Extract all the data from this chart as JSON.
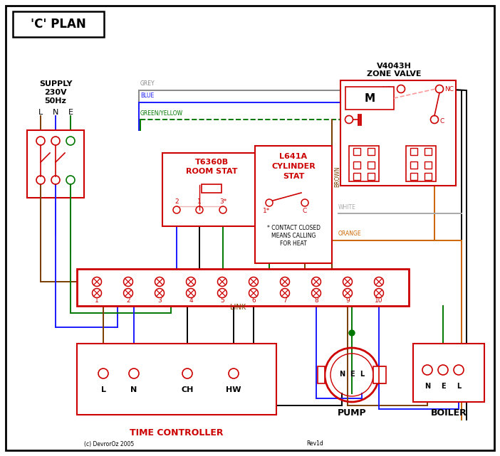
{
  "bg": "#ffffff",
  "black": "#000000",
  "red": "#cc0000",
  "blue": "#1a1aff",
  "green": "#007700",
  "brown": "#7a3d00",
  "grey": "#888888",
  "orange": "#cc6600",
  "white_w": "#aaaaaa",
  "pink": "#ff9999",
  "dark_brown": "#5a2d00",
  "supply_text": [
    "SUPPLY",
    "230V",
    "50Hz"
  ],
  "lne": [
    "L",
    "N",
    "E"
  ],
  "tc_labels": [
    "L",
    "N",
    "CH",
    "HW"
  ],
  "pump_labels": [
    "N",
    "E",
    "L"
  ],
  "boiler_labels": [
    "N",
    "E",
    "L"
  ],
  "term_count": 10,
  "title": "'C' PLAN",
  "zv_title1": "V4043H",
  "zv_title2": "ZONE VALVE",
  "rs_title1": "T6360B",
  "rs_title2": "ROOM STAT",
  "cs_title1": "L641A",
  "cs_title2": "CYLINDER",
  "cs_title3": "STAT",
  "tc_title": "TIME CONTROLLER",
  "pump_title": "PUMP",
  "boiler_title": "BOILER",
  "link_label": "LINK",
  "contact_note": [
    "* CONTACT CLOSED",
    "MEANS CALLING",
    "FOR HEAT"
  ],
  "copyright": "(c) DevrorOz 2005",
  "revision": "Rev1d",
  "wire_label_grey": "GREY",
  "wire_label_blue": "BLUE",
  "wire_label_gy": "GREEN/YELLOW",
  "wire_label_brown": "BROWN",
  "wire_label_white": "WHITE",
  "wire_label_orange": "ORANGE"
}
